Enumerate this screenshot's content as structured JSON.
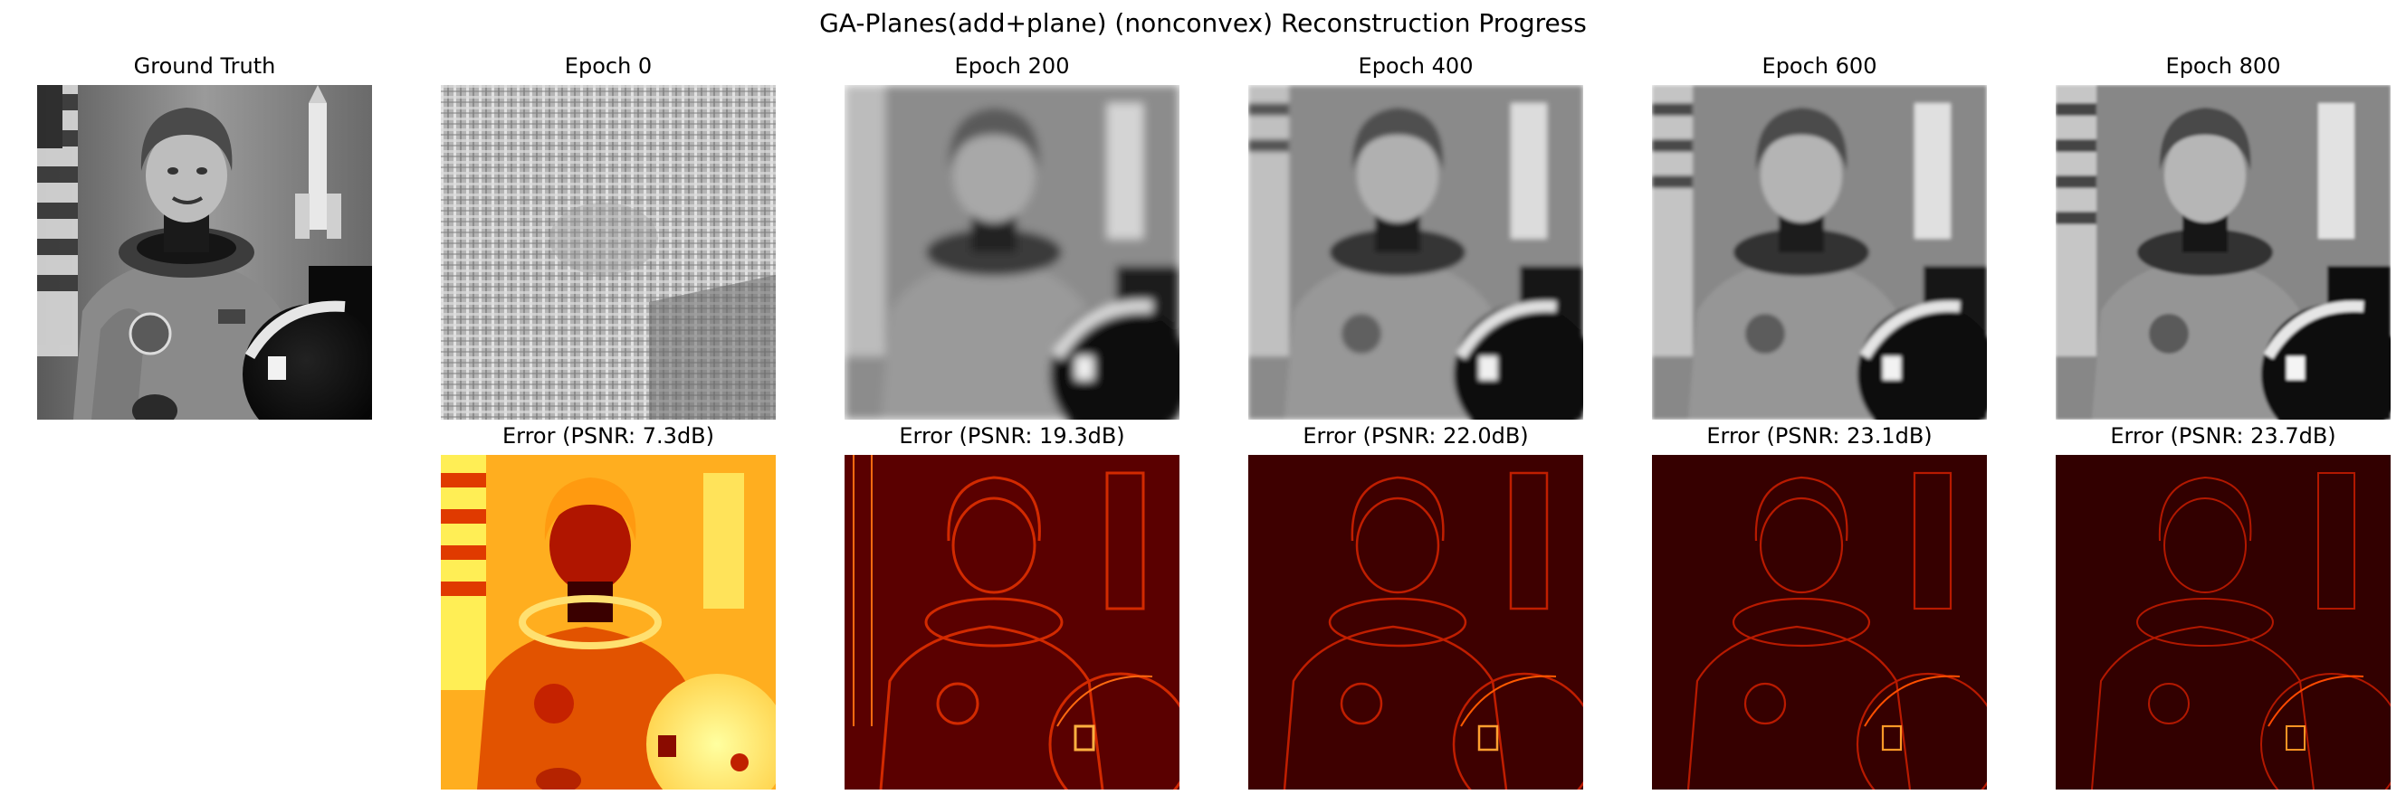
{
  "figure": {
    "suptitle": "GA-Planes(add+plane) (nonconvex) Reconstruction Progress"
  },
  "panels": {
    "ground_truth": {
      "title": "Ground Truth"
    },
    "reconstructions": [
      {
        "title": "Epoch 0"
      },
      {
        "title": "Epoch 200"
      },
      {
        "title": "Epoch 400"
      },
      {
        "title": "Epoch 600"
      },
      {
        "title": "Epoch 800"
      }
    ],
    "errors": [
      {
        "title": "Error (PSNR: 7.3dB)"
      },
      {
        "title": "Error (PSNR: 19.3dB)"
      },
      {
        "title": "Error (PSNR: 22.0dB)"
      },
      {
        "title": "Error (PSNR: 23.1dB)"
      },
      {
        "title": "Error (PSNR: 23.7dB)"
      }
    ]
  },
  "colors": {
    "grayscale_colormap": "gray",
    "error_colormap": "hot",
    "hot_dark": "#2a0000",
    "hot_mid": "#c41a00",
    "hot_bright": "#ffff66"
  }
}
